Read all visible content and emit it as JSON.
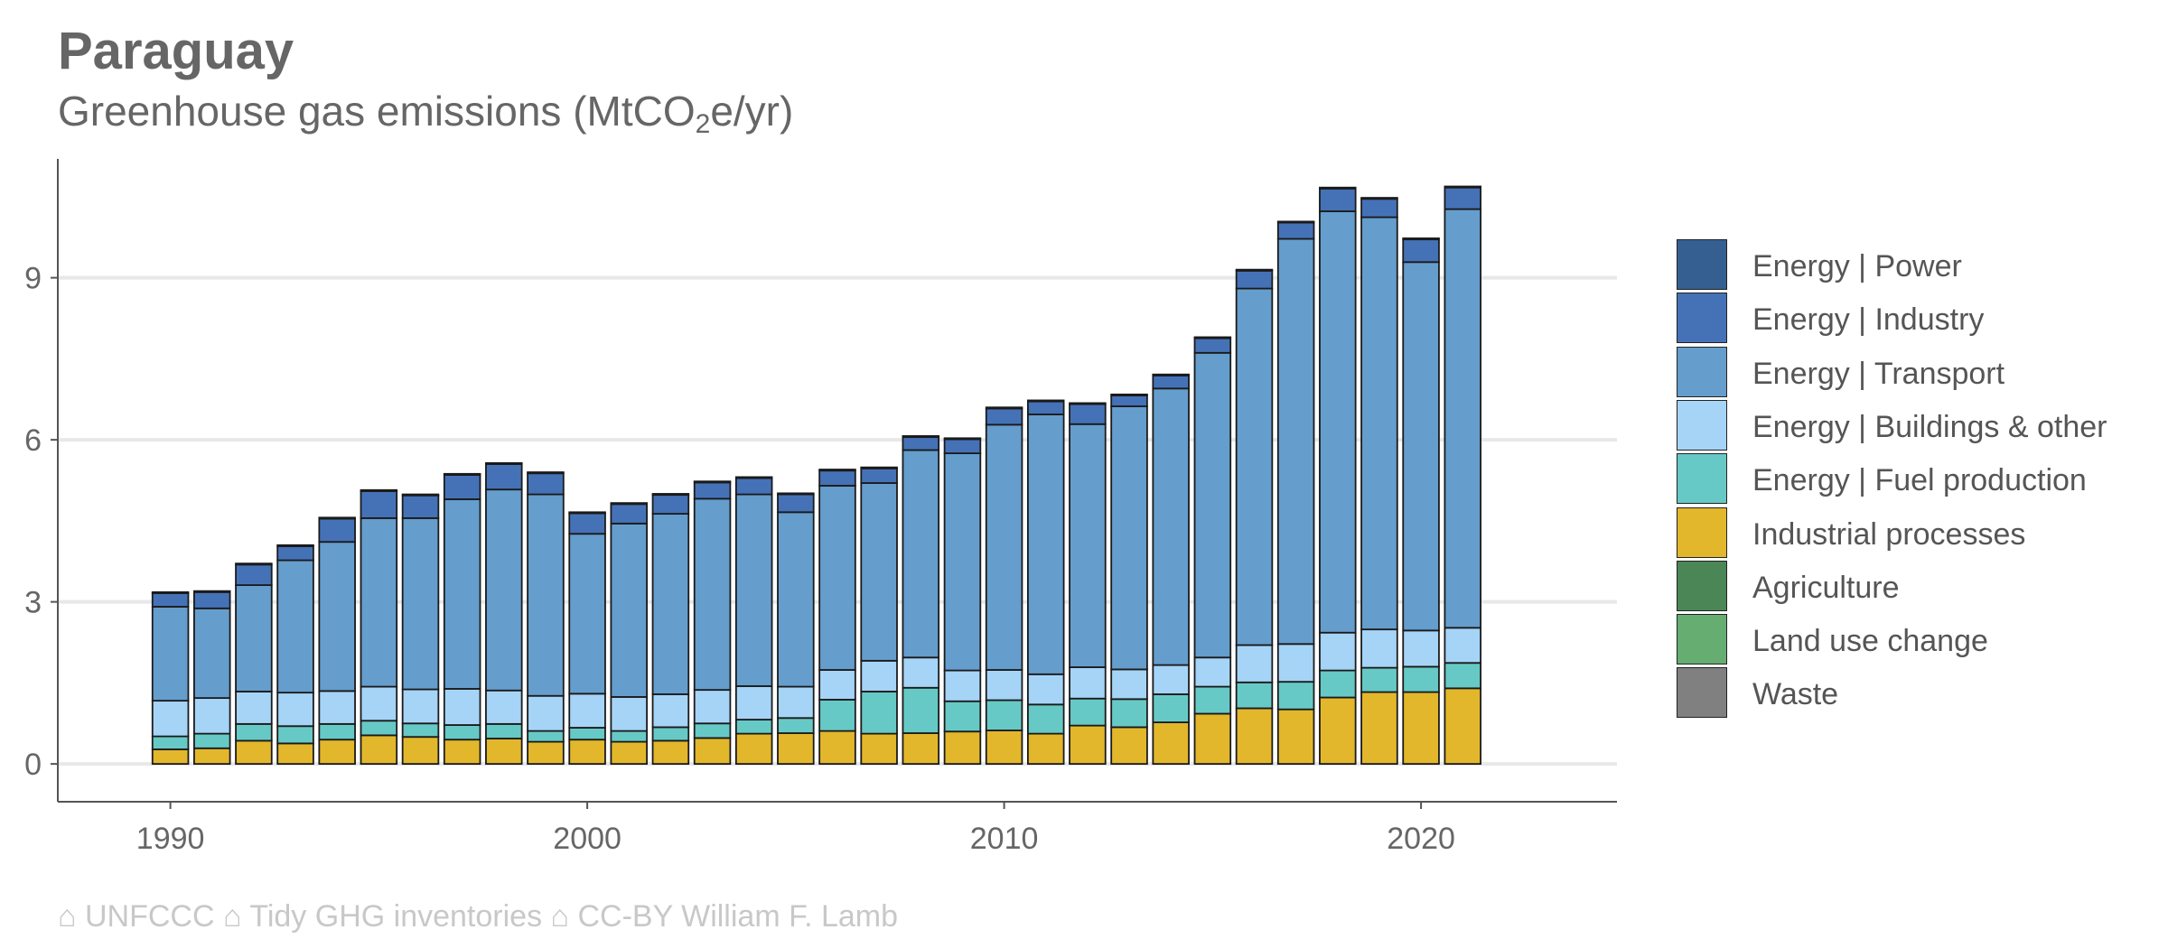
{
  "chart_data": {
    "type": "bar",
    "stacked": true,
    "title": "Paraguay",
    "subtitle_main": "Greenhouse gas emissions (MtCO",
    "subtitle_sub": "2",
    "subtitle_tail": "e/yr)",
    "caption": "⌂ UNFCCC ⌂ Tidy GHG inventories ⌂ CC-BY William F. Lamb",
    "xlim": [
      1987.3,
      2024.7
    ],
    "ylim": [
      -0.7,
      11.2
    ],
    "x_ticks": [
      1990,
      2000,
      2010,
      2020
    ],
    "y_ticks": [
      0,
      3,
      6,
      9
    ],
    "grid": "horizontal",
    "legend_position": "right",
    "x": [
      1990,
      1991,
      1992,
      1993,
      1994,
      1995,
      1996,
      1997,
      1998,
      1999,
      2000,
      2001,
      2002,
      2003,
      2004,
      2005,
      2006,
      2007,
      2008,
      2009,
      2010,
      2011,
      2012,
      2013,
      2014,
      2015,
      2016,
      2017,
      2018,
      2019,
      2020,
      2021
    ],
    "series": [
      {
        "name": "Waste",
        "color": "#808080",
        "values": [
          0,
          0,
          0,
          0,
          0,
          0,
          0,
          0,
          0,
          0,
          0,
          0,
          0,
          0,
          0,
          0,
          0,
          0,
          0,
          0,
          0,
          0,
          0,
          0,
          0,
          0,
          0,
          0,
          0,
          0,
          0,
          0
        ]
      },
      {
        "name": "Land use change",
        "color": "#66ad71",
        "values": [
          0,
          0,
          0,
          0,
          0,
          0,
          0,
          0,
          0,
          0,
          0,
          0,
          0,
          0,
          0,
          0,
          0,
          0,
          0,
          0,
          0,
          0,
          0,
          0,
          0,
          0,
          0,
          0,
          0,
          0,
          0,
          0
        ]
      },
      {
        "name": "Agriculture",
        "color": "#4b8656",
        "values": [
          0,
          0,
          0,
          0,
          0,
          0,
          0,
          0,
          0,
          0,
          0,
          0,
          0,
          0,
          0,
          0,
          0,
          0,
          0,
          0,
          0,
          0,
          0,
          0,
          0,
          0,
          0,
          0,
          0,
          0,
          0,
          0
        ]
      },
      {
        "name": "Industrial processes",
        "color": "#e3b72c",
        "values": [
          0.27,
          0.29,
          0.43,
          0.38,
          0.45,
          0.53,
          0.5,
          0.45,
          0.47,
          0.41,
          0.45,
          0.41,
          0.43,
          0.48,
          0.56,
          0.57,
          0.61,
          0.56,
          0.57,
          0.6,
          0.62,
          0.56,
          0.71,
          0.68,
          0.77,
          0.93,
          1.03,
          1.01,
          1.23,
          1.33,
          1.33,
          1.4
        ]
      },
      {
        "name": "Energy | Fuel production",
        "color": "#67c9c5",
        "values": [
          0.24,
          0.27,
          0.31,
          0.32,
          0.29,
          0.27,
          0.25,
          0.27,
          0.27,
          0.2,
          0.22,
          0.2,
          0.25,
          0.27,
          0.26,
          0.28,
          0.58,
          0.78,
          0.84,
          0.56,
          0.56,
          0.54,
          0.5,
          0.52,
          0.52,
          0.5,
          0.48,
          0.51,
          0.5,
          0.45,
          0.47,
          0.47
        ]
      },
      {
        "name": "Energy | Buildings & other",
        "color": "#a6d4f7",
        "values": [
          0.66,
          0.66,
          0.6,
          0.62,
          0.61,
          0.63,
          0.63,
          0.67,
          0.62,
          0.65,
          0.63,
          0.63,
          0.61,
          0.62,
          0.62,
          0.58,
          0.55,
          0.57,
          0.56,
          0.57,
          0.56,
          0.56,
          0.58,
          0.55,
          0.54,
          0.54,
          0.69,
          0.7,
          0.7,
          0.71,
          0.67,
          0.65
        ]
      },
      {
        "name": "Energy | Transport",
        "color": "#659dcd",
        "values": [
          1.74,
          1.66,
          1.97,
          2.45,
          2.76,
          3.12,
          3.17,
          3.51,
          3.72,
          3.73,
          2.96,
          3.21,
          3.34,
          3.54,
          3.55,
          3.23,
          3.41,
          3.29,
          3.84,
          4.02,
          4.54,
          4.81,
          4.5,
          4.87,
          5.12,
          5.64,
          6.6,
          7.5,
          7.8,
          7.63,
          6.82,
          7.75
        ]
      },
      {
        "name": "Energy | Industry",
        "color": "#4572b6",
        "values": [
          0.25,
          0.3,
          0.38,
          0.26,
          0.43,
          0.5,
          0.42,
          0.45,
          0.47,
          0.39,
          0.38,
          0.36,
          0.35,
          0.3,
          0.3,
          0.33,
          0.28,
          0.27,
          0.24,
          0.26,
          0.3,
          0.24,
          0.37,
          0.2,
          0.24,
          0.27,
          0.33,
          0.3,
          0.42,
          0.34,
          0.42,
          0.4
        ]
      },
      {
        "name": "Energy | Power",
        "color": "#365f91",
        "values": [
          0.02,
          0.02,
          0.02,
          0.02,
          0.02,
          0.02,
          0.02,
          0.02,
          0.02,
          0.02,
          0.02,
          0.02,
          0.02,
          0.02,
          0.02,
          0.02,
          0.02,
          0.02,
          0.02,
          0.02,
          0.02,
          0.02,
          0.02,
          0.02,
          0.02,
          0.02,
          0.02,
          0.02,
          0.02,
          0.02,
          0.02,
          0.02
        ]
      }
    ]
  },
  "legend": [
    {
      "label": "Energy | Power",
      "color": "#365f91"
    },
    {
      "label": "Energy | Industry",
      "color": "#4572b6"
    },
    {
      "label": "Energy | Transport",
      "color": "#659dcd"
    },
    {
      "label": "Energy | Buildings & other",
      "color": "#a6d4f7"
    },
    {
      "label": "Energy | Fuel production",
      "color": "#67c9c5"
    },
    {
      "label": "Industrial processes",
      "color": "#e3b72c"
    },
    {
      "label": "Agriculture",
      "color": "#4b8656"
    },
    {
      "label": "Land use change",
      "color": "#66ad71"
    },
    {
      "label": "Waste",
      "color": "#808080"
    }
  ]
}
